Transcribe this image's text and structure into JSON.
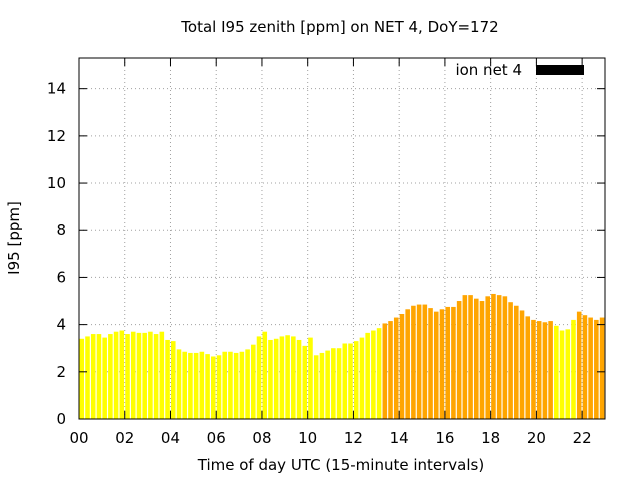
{
  "chart_data": {
    "type": "bar",
    "title": "Total I95 zenith [ppm] on NET 4, DoY=172",
    "xlabel": "Time of day UTC (15-minute intervals)",
    "ylabel": "I95 [ppm]",
    "legend": {
      "label": "ion net 4",
      "color": "#000000",
      "placement": "top-right"
    },
    "xlim": [
      0,
      23
    ],
    "ylim": [
      0,
      15.3
    ],
    "x_ticks": [
      "00",
      "02",
      "04",
      "06",
      "08",
      "10",
      "12",
      "14",
      "16",
      "18",
      "20",
      "22"
    ],
    "y_ticks": [
      "0",
      "2",
      "4",
      "6",
      "8",
      "10",
      "12",
      "14"
    ],
    "grid": true,
    "bar_step_hours": 0.25,
    "colors": {
      "low": "#ffff00",
      "high": "#ffa500"
    },
    "series": [
      {
        "values": [
          3.4,
          3.5,
          3.6,
          3.6,
          3.45,
          3.6,
          3.7,
          3.75,
          3.6,
          3.7,
          3.65,
          3.65,
          3.7,
          3.6,
          3.7,
          3.35,
          3.3,
          2.95,
          2.85,
          2.8,
          2.8,
          2.85,
          2.75,
          2.65,
          2.7,
          2.85,
          2.85,
          2.8,
          2.85,
          2.95,
          3.15,
          3.5,
          3.7,
          3.35,
          3.4,
          3.5,
          3.55,
          3.5,
          3.35,
          3.1,
          3.45,
          2.7,
          2.8,
          2.9,
          3.0,
          3.0,
          3.2,
          3.2,
          3.3,
          3.45,
          3.65,
          3.75,
          3.85,
          4.05,
          4.15,
          4.3,
          4.45,
          4.65,
          4.8,
          4.85,
          4.85,
          4.7,
          4.55,
          4.65,
          4.75,
          4.75,
          5.0,
          5.25,
          5.25,
          5.1,
          5.0,
          5.2,
          5.3,
          5.25,
          5.2,
          4.95,
          4.8,
          4.6,
          4.35,
          4.2,
          4.15,
          4.1,
          4.15,
          3.95,
          3.75,
          3.8,
          4.2,
          4.55,
          4.4,
          4.3,
          4.2,
          4.3
        ],
        "category": [
          "low",
          "low",
          "low",
          "low",
          "low",
          "low",
          "low",
          "low",
          "low",
          "low",
          "low",
          "low",
          "low",
          "low",
          "low",
          "low",
          "low",
          "low",
          "low",
          "low",
          "low",
          "low",
          "low",
          "low",
          "low",
          "low",
          "low",
          "low",
          "low",
          "low",
          "low",
          "low",
          "low",
          "low",
          "low",
          "low",
          "low",
          "low",
          "low",
          "low",
          "low",
          "low",
          "low",
          "low",
          "low",
          "low",
          "low",
          "low",
          "low",
          "low",
          "low",
          "low",
          "low",
          "high",
          "high",
          "high",
          "high",
          "high",
          "high",
          "high",
          "high",
          "high",
          "high",
          "high",
          "high",
          "high",
          "high",
          "high",
          "high",
          "high",
          "high",
          "high",
          "high",
          "high",
          "high",
          "high",
          "high",
          "high",
          "high",
          "high",
          "high",
          "high",
          "high",
          "low",
          "low",
          "low",
          "low",
          "high",
          "high",
          "high",
          "high",
          "high"
        ]
      }
    ]
  }
}
